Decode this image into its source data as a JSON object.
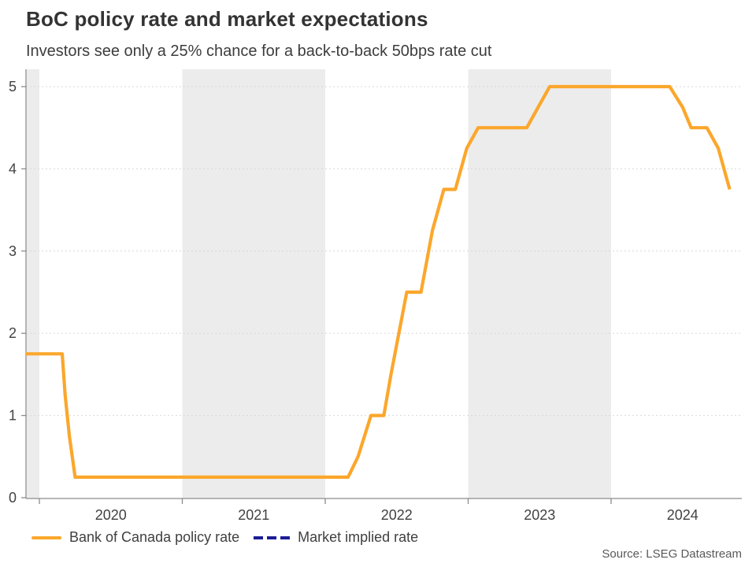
{
  "header": {
    "title": "BoC policy rate and market expectations",
    "subtitle": "Investors see only a 25% chance for a back-to-back 50bps rate cut"
  },
  "legend": {
    "items": [
      {
        "label": "Bank of Canada policy rate",
        "color": "#FBA72C",
        "style": "solid"
      },
      {
        "label": "Market implied rate",
        "color": "#1C1C96",
        "style": "dashed"
      }
    ]
  },
  "source": {
    "text": "Source: LSEG Datastream"
  },
  "colors": {
    "band": "#ECECEC",
    "gridline": "#D8D8D8",
    "axis": "#8C8C8C",
    "tick_label": "#424242",
    "title": "#333333",
    "policy_rate_orange": "#FBA72C",
    "market_implied_navy": "#1C1C96"
  },
  "chart_data": {
    "type": "line",
    "title": "BoC policy rate and market expectations",
    "subtitle": "Investors see only a 25% chance for a back-to-back 50bps rate cut",
    "xlabel": "",
    "ylabel": "",
    "x_range": [
      2019.906,
      2024.914
    ],
    "ylim": [
      0,
      5.21
    ],
    "y_ticks": [
      0,
      1,
      2,
      3,
      4,
      5
    ],
    "x_year_ticks": [
      2020,
      2021,
      2022,
      2023,
      2024
    ],
    "x_tick_labels": [
      "2020",
      "2021",
      "2022",
      "2023",
      "2024"
    ],
    "shaded_bands": [
      [
        2019.906,
        2020
      ],
      [
        2021,
        2022
      ],
      [
        2023,
        2024
      ]
    ],
    "grid": "horizontal-dotted",
    "legend_position": "bottom-left",
    "series": [
      {
        "name": "Bank of Canada policy rate",
        "color": "#FBA72C",
        "style": "solid",
        "points": [
          [
            2019.906,
            1.75
          ],
          [
            2020.16,
            1.75
          ],
          [
            2020.18,
            1.25
          ],
          [
            2020.21,
            0.75
          ],
          [
            2020.25,
            0.25
          ],
          [
            2022.16,
            0.25
          ],
          [
            2022.23,
            0.5
          ],
          [
            2022.32,
            1.0
          ],
          [
            2022.41,
            1.0
          ],
          [
            2022.46,
            1.5
          ],
          [
            2022.57,
            2.5
          ],
          [
            2022.67,
            2.5
          ],
          [
            2022.75,
            3.25
          ],
          [
            2022.83,
            3.75
          ],
          [
            2022.91,
            3.75
          ],
          [
            2022.99,
            4.25
          ],
          [
            2023.07,
            4.5
          ],
          [
            2023.41,
            4.5
          ],
          [
            2023.49,
            4.75
          ],
          [
            2023.57,
            5.0
          ],
          [
            2024.41,
            5.0
          ],
          [
            2024.5,
            4.75
          ],
          [
            2024.56,
            4.5
          ],
          [
            2024.67,
            4.5
          ],
          [
            2024.75,
            4.25
          ],
          [
            2024.83,
            3.75
          ]
        ]
      },
      {
        "name": "Market implied rate",
        "color": "#1C1C96",
        "style": "dashed",
        "points": []
      }
    ]
  }
}
